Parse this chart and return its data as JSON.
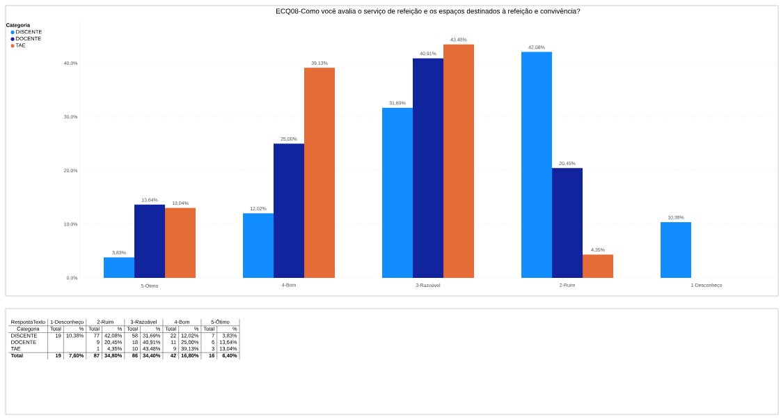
{
  "chart_data": [
    {
      "type": "bar",
      "title": "ECQ08-Como você avalia o serviço de refeição e os espaços destinados à refeição e convivência?",
      "legend_title": "Categoria",
      "legend": "top left",
      "grid": "y",
      "categories": [
        "5-Ótimo",
        "4-Bom",
        "3-Razoável",
        "2-Ruim",
        "1-Desconheço"
      ],
      "series": [
        {
          "name": "DISCENTE",
          "color": "#118dff",
          "values": [
            3.83,
            12.02,
            31.69,
            42.08,
            10.38
          ],
          "value_labels": [
            "3,83%",
            "12,02%",
            "31,69%",
            "42,08%",
            "10,38%"
          ]
        },
        {
          "name": "DOCENTE",
          "color": "#12239e",
          "values": [
            13.64,
            25.0,
            40.91,
            20.45,
            null
          ],
          "value_labels": [
            "13,64%",
            "25,00%",
            "40,91%",
            "20,45%",
            null
          ]
        },
        {
          "name": "TAE",
          "color": "#e66c37",
          "values": [
            13.04,
            39.13,
            43.48,
            4.35,
            null
          ],
          "value_labels": [
            "13,04%",
            "39,13%",
            "43,48%",
            "4,35%",
            null
          ]
        }
      ],
      "ylim": [
        0,
        48
      ],
      "yticks": [
        {
          "value": 0,
          "label": "0.0%"
        },
        {
          "value": 10,
          "label": "10.0%"
        },
        {
          "value": 20,
          "label": "20.0%"
        },
        {
          "value": 30,
          "label": "30.0%"
        },
        {
          "value": 40,
          "label": "40.0%"
        }
      ]
    },
    {
      "type": "other",
      "title": "RespostaTexto",
      "ylabel": "Categoria",
      "annotations": [
        "Total",
        "%"
      ],
      "categories": [
        "1-Desconheço",
        "2-Ruim",
        "3-Razoável",
        "4-Bom",
        "5-Ótimo"
      ],
      "y_categories": [
        "DISCENTE",
        "DOCENTE",
        "TAE",
        "Total"
      ],
      "cell_labels": [
        [
          "19",
          "10,38%",
          "77",
          "42,08%",
          "58",
          "31,69%",
          "22",
          "12,02%",
          "7",
          "3,83%"
        ],
        [
          null,
          null,
          "9",
          "20,45%",
          "18",
          "40,91%",
          "11",
          "25,00%",
          "6",
          "13,64%"
        ],
        [
          null,
          null,
          "1",
          "4,35%",
          "10",
          "43,48%",
          "9",
          "39,13%",
          "3",
          "13,04%"
        ],
        [
          "19",
          "7,60%",
          "87",
          "34,80%",
          "86",
          "34,40%",
          "42",
          "16,80%",
          "16",
          "6,40%"
        ]
      ]
    }
  ]
}
